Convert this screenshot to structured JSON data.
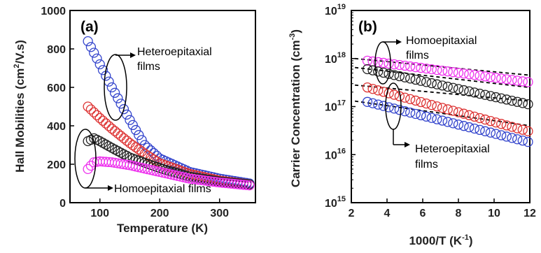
{
  "chart_data": [
    {
      "type": "scatter",
      "panel_label": "(a)",
      "xlabel": "Temperature (K)",
      "ylabel_main": "Hall Mobilities (cm",
      "ylabel_sup": "2",
      "ylabel_tail": "/V.s)",
      "xlim": [
        50,
        360
      ],
      "ylim": [
        0,
        1000
      ],
      "xticks": [
        "100",
        "200",
        "300"
      ],
      "xtick_values": [
        100,
        200,
        300
      ],
      "yticks": [
        "0",
        "200",
        "400",
        "600",
        "800",
        "1000"
      ],
      "ytick_values": [
        0,
        200,
        400,
        600,
        800,
        1000
      ],
      "annotations": {
        "hetero_line1": "Heteroepitaxial",
        "hetero_line2": "films",
        "homo": "Homoepitaxial films"
      },
      "series": [
        {
          "color": "#3344cc",
          "x": [
            80,
            100,
            120,
            150,
            175,
            200,
            250,
            300,
            350
          ],
          "y": [
            840,
            720,
            600,
            430,
            300,
            230,
            160,
            125,
            100
          ]
        },
        {
          "color": "#dd3333",
          "x": [
            80,
            100,
            120,
            150,
            175,
            200,
            250,
            300,
            350
          ],
          "y": [
            500,
            440,
            385,
            310,
            255,
            205,
            150,
            115,
            95
          ]
        },
        {
          "color": "#222222",
          "x": [
            80,
            90,
            100,
            120,
            150,
            200,
            250,
            300,
            350
          ],
          "y": [
            320,
            335,
            320,
            285,
            235,
            180,
            135,
            110,
            95
          ]
        },
        {
          "color": "#ee33ee",
          "x": [
            80,
            90,
            100,
            120,
            150,
            200,
            250,
            300,
            350
          ],
          "y": [
            175,
            210,
            215,
            210,
            195,
            160,
            125,
            105,
            90
          ]
        }
      ]
    },
    {
      "type": "scatter",
      "panel_label": "(b)",
      "xlabel_main": "1000/T (K",
      "xlabel_sup": "-1",
      "xlabel_tail": ")",
      "ylabel_main": "Carrier Concentration (cm",
      "ylabel_sup": "-3",
      "ylabel_tail": ")",
      "yscale": "log",
      "xlim": [
        2,
        12
      ],
      "ylim": [
        1000000000000000.0,
        1e+19
      ],
      "xticks": [
        "2",
        "4",
        "6",
        "8",
        "10",
        "12"
      ],
      "xtick_values": [
        2,
        4,
        6,
        8,
        10,
        12
      ],
      "ytick_exponents": [
        "15",
        "16",
        "17",
        "18",
        "19"
      ],
      "ytick_base": "10",
      "annotations": {
        "homo_line1": "Homoepitaxial",
        "homo_line2": "films",
        "hetero_line1": "Heteroepitaxial",
        "hetero_line2": "films"
      },
      "series": [
        {
          "color": "#ee33ee",
          "x": [
            2.9,
            12
          ],
          "y": [
            9e+17,
            3.2e+17
          ],
          "fit": [
            1e+18,
            4.5e+17
          ]
        },
        {
          "color": "#222222",
          "x": [
            2.9,
            12
          ],
          "y": [
            6e+17,
            1.1e+17
          ],
          "fit": [
            6.5e+17,
            2.5e+17
          ]
        },
        {
          "color": "#dd3333",
          "x": [
            2.9,
            12
          ],
          "y": [
            2.5e+17,
            3e+16
          ],
          "fit": [
            2.8e+17,
            1.3e+17
          ]
        },
        {
          "color": "#3344cc",
          "x": [
            2.9,
            12
          ],
          "y": [
            1.25e+17,
            1.8e+16
          ],
          "fit": [
            1.3e+17,
            4e+16
          ]
        }
      ]
    }
  ]
}
